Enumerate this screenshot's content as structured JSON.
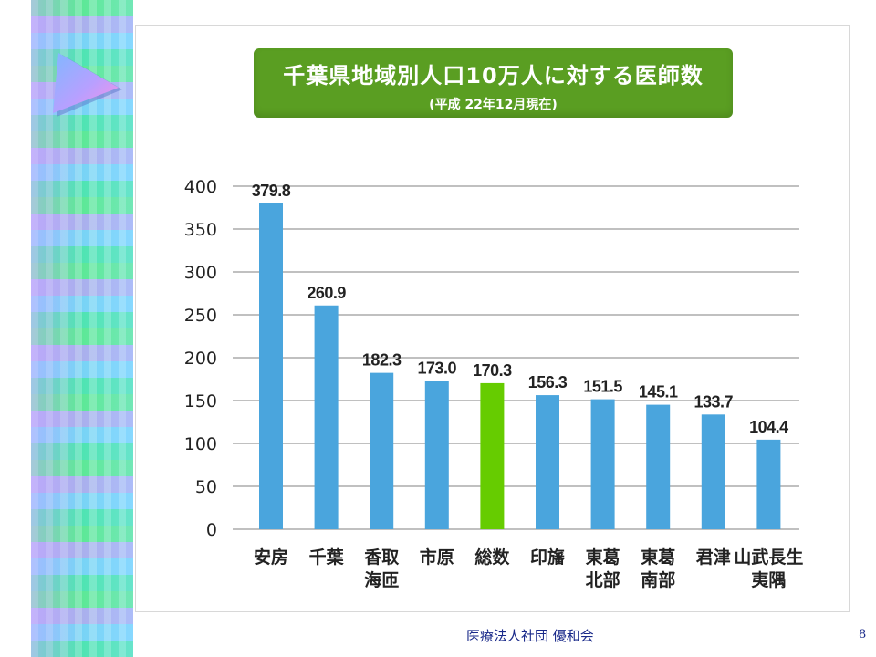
{
  "slide": {
    "footer": "医療法人社団 優和会",
    "page_number": "8"
  },
  "decor": {
    "pointer_icon": "triangle-pointer-icon"
  },
  "chart_data": {
    "type": "bar",
    "title": "千葉県地域別人口10万人に対する医師数",
    "subtitle": "(平成 22年12月現在)",
    "categories": [
      [
        "安房"
      ],
      [
        "千葉"
      ],
      [
        "香取",
        "海匝"
      ],
      [
        "市原"
      ],
      [
        "総数"
      ],
      [
        "印旛"
      ],
      [
        "東葛",
        "北部"
      ],
      [
        "東葛",
        "南部"
      ],
      [
        "君津"
      ],
      [
        "山武長生",
        "夷隅"
      ]
    ],
    "values": [
      379.8,
      260.9,
      182.3,
      173.0,
      170.3,
      156.3,
      151.5,
      145.1,
      133.7,
      104.4
    ],
    "value_labels": [
      "379.8",
      "260.9",
      "182.3",
      "173.0",
      "170.3",
      "156.3",
      "151.5",
      "145.1",
      "133.7",
      "104.4"
    ],
    "highlight_index": 4,
    "colors": {
      "bar": "#4aa5dd",
      "highlight": "#66cc00",
      "grid": "#9a9a9a"
    },
    "ylim": [
      0,
      400
    ],
    "yticks": [
      0,
      50,
      100,
      150,
      200,
      250,
      300,
      350,
      400
    ],
    "grid": true,
    "xlabel": "",
    "ylabel": ""
  }
}
